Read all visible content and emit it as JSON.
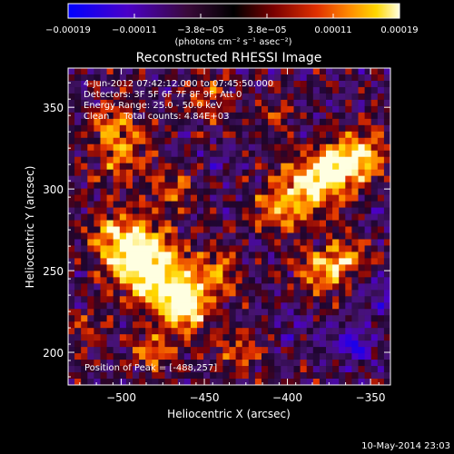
{
  "chart_data": {
    "type": "heatmap",
    "title": "Reconstructed RHESSI Image",
    "xlabel": "Heliocentric X (arcsec)",
    "ylabel": "Heliocentric Y (arcsec)",
    "xlim": [
      -532,
      -338
    ],
    "ylim": [
      180,
      374
    ],
    "x_ticks": [
      -500,
      -450,
      -400,
      -350
    ],
    "x_tick_labels": [
      "−500",
      "−450",
      "−400",
      "−350"
    ],
    "y_ticks": [
      200,
      250,
      300,
      350
    ],
    "y_tick_labels": [
      "200",
      "250",
      "300",
      "350"
    ],
    "colorbar": {
      "range": [
        -0.00019,
        0.00019
      ],
      "tick_labels": [
        "−0.00019",
        "−0.00011",
        "−3.8e−05",
        "3.8e−05",
        "0.00011",
        "0.00019"
      ],
      "units": "(photons cm⁻² s⁻¹ asec⁻²)",
      "colors": [
        "#0000ff",
        "#4b00c8",
        "#4a0a4a",
        "#000000",
        "#7a0000",
        "#e03000",
        "#ff8c00",
        "#ffd700",
        "#ffffe0"
      ]
    },
    "annotations": [
      "4-Jun-2012 07:42:12.000 to 07:45:50.000",
      "Detectors: 3F 5F 6F 7F 8F 9F, Att 0",
      "Energy Range: 25.0 - 50.0 keV",
      "Clean     Total counts: 4.84E+03"
    ],
    "peak_label": "Position of Peak = [-488,257]",
    "peak": [
      -488,
      257
    ],
    "grid": false
  },
  "footer": {
    "timestamp": "10-May-2014 23:03"
  }
}
